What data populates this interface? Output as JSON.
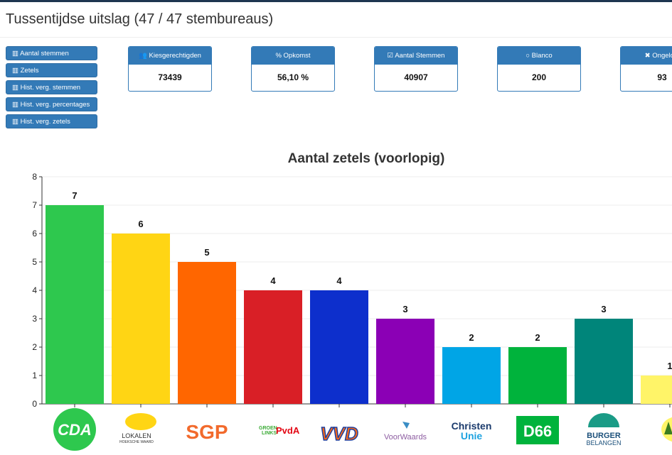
{
  "page": {
    "title": "Tussentijdse uitslag (47 / 47 stembureaus)"
  },
  "nav": [
    {
      "label": "Aantal stemmen",
      "icon": "bar-chart-icon"
    },
    {
      "label": "Zetels",
      "icon": "bar-chart-icon"
    },
    {
      "label": "Hist. verg. stemmen",
      "icon": "bar-chart-icon"
    },
    {
      "label": "Hist. verg. percentages",
      "icon": "bar-chart-icon"
    },
    {
      "label": "Hist. verg. zetels",
      "icon": "bar-chart-icon"
    }
  ],
  "cards": [
    {
      "label": "Kiesgerechtigden",
      "value": "73439",
      "icon": "users-icon",
      "glyph": "👥"
    },
    {
      "label": "Opkomst",
      "value": "56,10 %",
      "icon": "percent-icon",
      "glyph": "%"
    },
    {
      "label": "Aantal Stemmen",
      "value": "40907",
      "icon": "check-square-icon",
      "glyph": "☑"
    },
    {
      "label": "Blanco",
      "value": "200",
      "icon": "circle-icon",
      "glyph": "○"
    },
    {
      "label": "Ongeldig",
      "value": "93",
      "icon": "times-icon",
      "glyph": "✖"
    }
  ],
  "chart_data": {
    "type": "bar",
    "title": "Aantal zetels (voorlopig)",
    "categories": [
      "CDA",
      "LOKALEN HOEKSCHE WAARD",
      "SGP",
      "GROENLINKS PvdA",
      "VVD",
      "VoorWaards",
      "Christen Unie",
      "D66",
      "BURGER BELANGEN HOEKSCHE WAARD",
      ""
    ],
    "values": [
      7,
      6,
      5,
      4,
      4,
      3,
      2,
      2,
      3,
      1
    ],
    "colors": [
      "#2ec84e",
      "#ffd514",
      "#ff6600",
      "#d91f26",
      "#0d2fcc",
      "#8b00b5",
      "#00a5e6",
      "#00b33c",
      "#00857a",
      "#fff468"
    ],
    "ylim": [
      0,
      8
    ],
    "yticks": [
      "0",
      "1",
      "2",
      "3",
      "4",
      "5",
      "6",
      "7",
      "8"
    ],
    "grid": true,
    "xlabel": "",
    "ylabel": ""
  }
}
